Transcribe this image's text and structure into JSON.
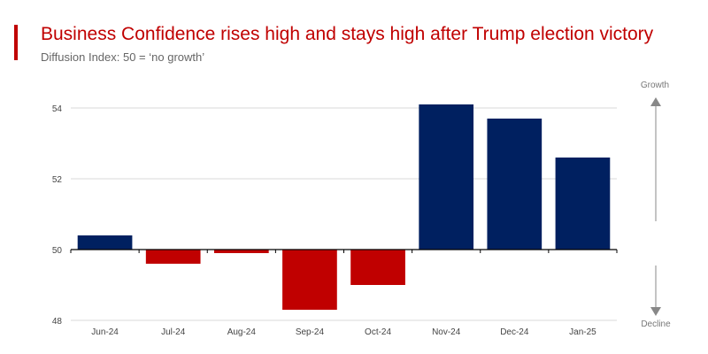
{
  "title": "Business Confidence rises high and stays high after Trump election victory",
  "subtitle": "Diffusion Index: 50 = ‘no growth’",
  "colors": {
    "accent": "#c00000",
    "positive": "#002060",
    "negative": "#c00000"
  },
  "arrows": {
    "up_label": "Growth",
    "down_label": "Decline"
  },
  "chart_data": {
    "type": "bar",
    "title": "Business Confidence rises high and stays high after Trump election victory",
    "subtitle": "Diffusion Index: 50 = ‘no growth’",
    "categories": [
      "Jun-24",
      "Jul-24",
      "Aug-24",
      "Sep-24",
      "Oct-24",
      "Nov-24",
      "Dec-24",
      "Jan-25"
    ],
    "values": [
      50.4,
      49.6,
      49.9,
      48.3,
      49.0,
      54.1,
      53.7,
      52.6
    ],
    "baseline": 50,
    "ylim": [
      48,
      54
    ],
    "yticks": [
      48,
      50,
      52,
      54
    ],
    "grid": true,
    "xlabel": "",
    "ylabel": ""
  }
}
